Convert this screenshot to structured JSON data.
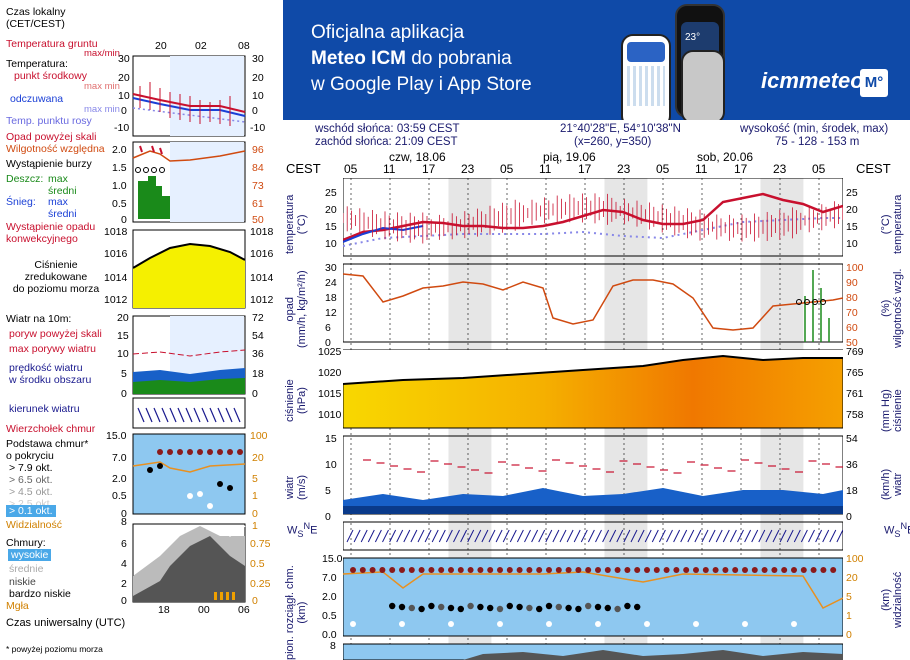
{
  "legend": {
    "time_local": "Czas lokalny\n(CET/CEST)",
    "ground_temp": "Temperatura gruntu",
    "ground_minmax": "max/min",
    "temperature": "Temperatura:",
    "mid_point": "punkt środkowy",
    "max_min_1": "max min",
    "felt": "odczuwana",
    "max_min_2": "max min",
    "dew_point": "Temp. punktu rosy",
    "precip_above": "Opad powyżej skali",
    "humidity": "Wilgotność względna",
    "storm": "Wystąpienie burzy",
    "rain": "Deszcz:",
    "rain_max": "max",
    "rain_mid": "średni",
    "snow": "Śnieg:",
    "snow_max": "max",
    "snow_mid": "średni",
    "precip_occurrence": "Wystąpienie opadu\nkonwekcyjnego",
    "pressure": "Ciśnienie\nzredukowane\ndo poziomu morza",
    "wind_10m": "Wiatr na 10m:",
    "gust_above": "poryw powyżej skali",
    "max_gust": "max porywy wiatru",
    "wind_speed": "prędkość wiatru\nw środku obszaru",
    "wind_dir": "kierunek wiatru",
    "cloud_top": "Wierzchołek chmur",
    "cloud_base": "Podstawa chmur*\no pokryciu",
    "okt79": "> 7.9 okt.",
    "okt65": "> 6.5 okt.",
    "okt45": "> 4.5 okt.",
    "okt25": "> 2.5 okt.",
    "okt01": "> 0.1 okt.",
    "visibility": "Widzialność",
    "clouds": "Chmury:",
    "high": "wysokie",
    "mid": "średnie",
    "low": "niskie",
    "very_low": "bardzo niskie",
    "fog": "Mgła",
    "utc": "Czas uniwersalny (UTC)",
    "footnote": "* powyżej poziomu morza"
  },
  "mini_axes": {
    "top_hours": [
      "20",
      "02",
      "08"
    ],
    "bottom_hours": [
      "18",
      "00",
      "06"
    ],
    "temp_ticks": [
      "30",
      "20",
      "10",
      "0",
      "-10"
    ],
    "humid_ticks": [
      "96",
      "84",
      "73",
      "61",
      "50"
    ],
    "precip_ticks": [
      "2.0",
      "1.5",
      "1.0",
      "0.5",
      "0"
    ],
    "press_ticks": [
      "1018",
      "1016",
      "1014",
      "1012"
    ],
    "wind_ticks_l": [
      "20",
      "15",
      "10",
      "5",
      "0"
    ],
    "wind_ticks_r": [
      "72",
      "54",
      "36",
      "18",
      "0"
    ],
    "cloud_ticks_l": [
      "15.0",
      "7.0",
      "2.0",
      "0.5",
      "0"
    ],
    "cloud_ticks_r": [
      "100",
      "20",
      "5",
      "1",
      "0"
    ],
    "cov_ticks_l": [
      "8",
      "6",
      "4",
      "2",
      "0"
    ],
    "cov_ticks_r": [
      "1",
      "0.75",
      "0.5",
      "0.25",
      "0"
    ]
  },
  "banner": {
    "line1": "Oficjalna aplikacja",
    "line2": "Meteo ICM",
    "line2b": " do pobrania",
    "line3": "w Google Play i App Store",
    "logo": "icmmeteo",
    "logo_badge": "M°",
    "phone_temp": "23°"
  },
  "info": {
    "sunrise": "wschód słońca: 03:59 CEST",
    "sunset": "zachód słońca: 21:09 CEST",
    "coords": "21°40'28\"E, 54°10'38\"N",
    "grid": "(x=260,  y=350)",
    "elev_label": "wysokość (min, środek, max)",
    "elev": "75 - 128 - 153 m"
  },
  "main": {
    "cest": "CEST",
    "days": [
      "czw, 18.06",
      "pią, 19.06",
      "sob, 20.06"
    ],
    "hours": [
      "05",
      "11",
      "17",
      "23",
      "05",
      "11",
      "17",
      "23",
      "05",
      "11",
      "17",
      "23",
      "05"
    ],
    "panels": {
      "temp": {
        "left": "temperatura\n(°C)",
        "right": "(°C)\ntemperatura",
        "ticks": [
          "25",
          "20",
          "15",
          "10"
        ]
      },
      "precip": {
        "left": "opad\n(mm/h, kg/m²/h)",
        "right": "(%)\nwilgotność wzgl.",
        "ticks_l": [
          "30",
          "24",
          "18",
          "12",
          "6",
          "0"
        ],
        "ticks_r": [
          "100",
          "90",
          "80",
          "70",
          "60",
          "50"
        ]
      },
      "press": {
        "left": "ciśnienie\n(hPa)",
        "right": "(mm Hg)\nciśnienie",
        "ticks_l": [
          "1025",
          "1020",
          "1015",
          "1010"
        ],
        "ticks_r": [
          "769",
          "765",
          "761",
          "758"
        ]
      },
      "wind": {
        "left": "wiatr\n(m/s)",
        "right": "(km/h)\nwiatr",
        "ticks_l": [
          "15",
          "10",
          "5",
          "0"
        ],
        "ticks_r": [
          "54",
          "36",
          "18",
          "0"
        ]
      },
      "cloud": {
        "left": "pion. rozciągł. chm.\n(km)",
        "right": "(km)\nwidzialność",
        "ticks_l": [
          "15.0",
          "7.0",
          "2.0",
          "0.5",
          "0.0"
        ],
        "ticks_r": [
          "100",
          "20",
          "5",
          "1",
          "0"
        ]
      },
      "cover": {
        "ticks_l": [
          "8"
        ]
      }
    }
  },
  "colors": {
    "banner": "#0f4aa8",
    "temp": "#c8102e",
    "felt": "#1a3fd6",
    "dew": "#6a6ae0",
    "humidity": "#d04a10",
    "pressure": "#f5c400",
    "wind": "#1860c8",
    "night": "#e6e6e6"
  }
}
